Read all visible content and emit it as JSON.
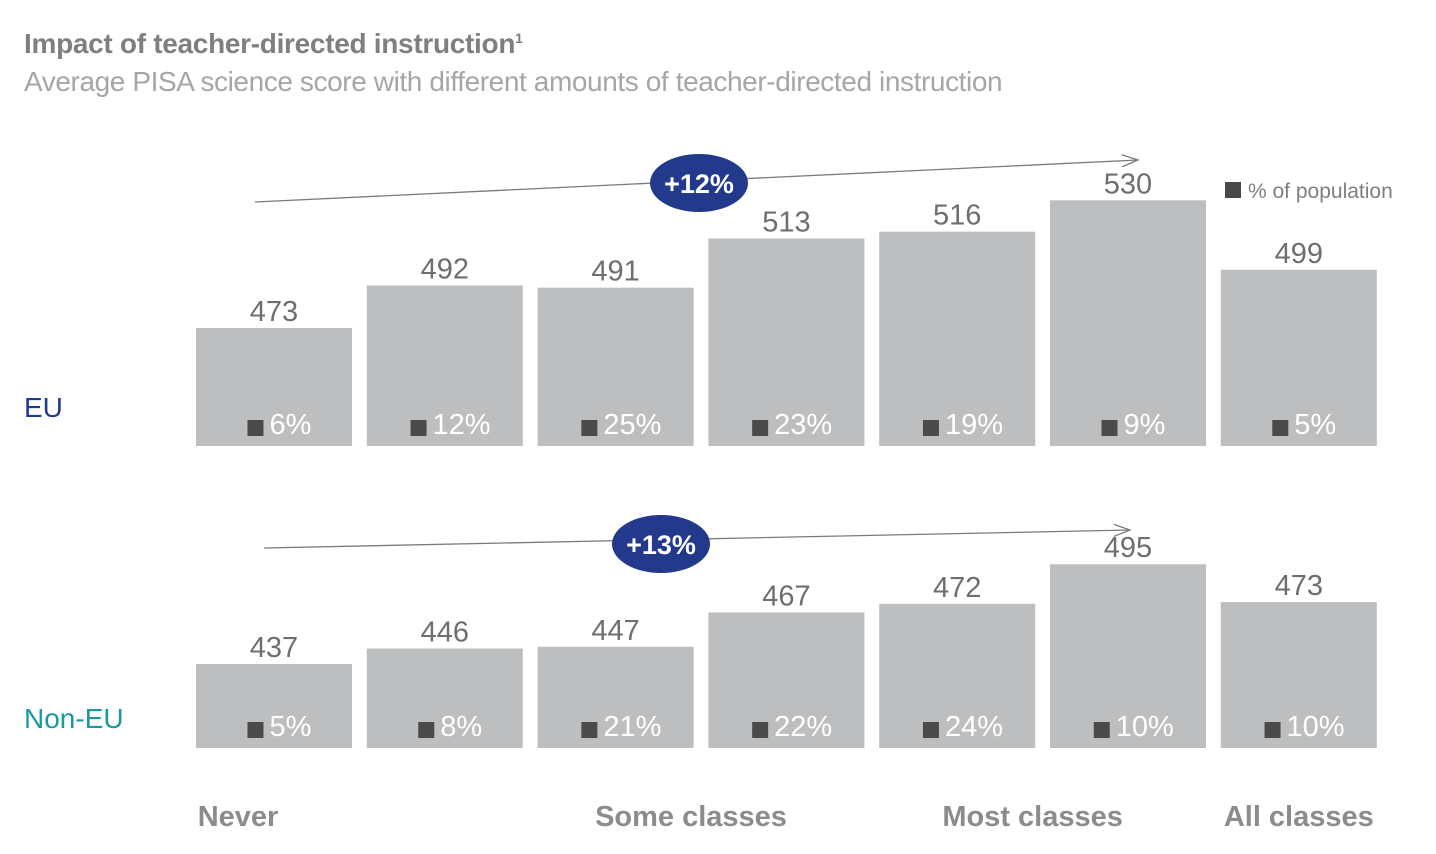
{
  "title": "Impact of teacher-directed instruction",
  "title_footnote": "1",
  "subtitle": "Average PISA science score with different amounts of teacher-directed instruction",
  "legend": {
    "label": "% of population",
    "marker_color": "#4a4a4a"
  },
  "colors": {
    "bar": "#bdbebf",
    "eu_label": "#233a8c",
    "noneu_label": "#1a9aa0",
    "trend_oval": "#233a8c"
  },
  "chart_data": {
    "type": "bar",
    "categories": [
      "",
      "",
      "",
      "",
      "",
      "",
      ""
    ],
    "category_axis_labels": [
      {
        "label": "Never",
        "index": 0
      },
      {
        "label": "Some classes",
        "index": 2.5
      },
      {
        "label": "Most classes",
        "index": 4.5
      },
      {
        "label": "All classes",
        "index": 6
      }
    ],
    "series": [
      {
        "name": "EU",
        "values": [
          473,
          492,
          491,
          513,
          516,
          530,
          499
        ],
        "population_pct": [
          "6%",
          "12%",
          "25%",
          "23%",
          "19%",
          "9%",
          "5%"
        ],
        "trend_label": "+12%"
      },
      {
        "name": "Non-EU",
        "values": [
          437,
          446,
          447,
          467,
          472,
          495,
          473
        ],
        "population_pct": [
          "5%",
          "8%",
          "21%",
          "22%",
          "24%",
          "10%",
          "10%"
        ],
        "trend_label": "+13%"
      }
    ]
  }
}
